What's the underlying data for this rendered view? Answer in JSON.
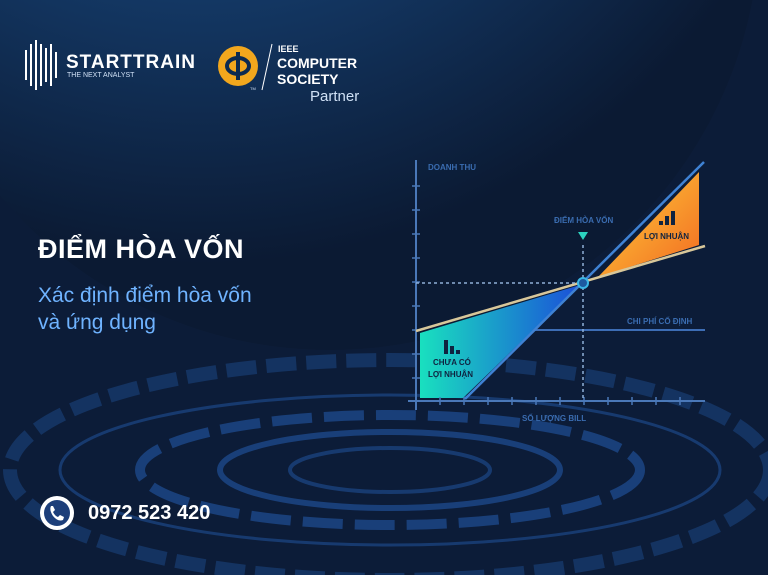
{
  "brand": {
    "name": "STARTTRAIN",
    "tagline": "THE NEXT ANALYST"
  },
  "partner": {
    "line1": "IEEE",
    "line2": "COMPUTER",
    "line3": "SOCIETY",
    "line4": "Partner",
    "tm": "TM"
  },
  "headline": "ĐIỂM HÒA VỐN",
  "subtitle_line1": "Xác định điểm hòa vốn",
  "subtitle_line2": "và ứng dụng",
  "diagram": {
    "y_label": "DOANH THU",
    "x_label": "SỐ LƯỢNG BILL",
    "breakeven_label": "ĐIỂM HÒA VỐN",
    "fixed_cost_label": "CHI PHÍ CỐ ĐỊNH",
    "profit_label": "LỢI NHUẬN",
    "loss_label_line1": "CHƯA CÓ",
    "loss_label_line2": "LỢI NHUẬN"
  },
  "contact": {
    "phone": "0972 523 420",
    "icon": "phone-icon"
  },
  "colors": {
    "background": "#0b1a33",
    "accent_blue": "#4a8fd8",
    "profit": "#f7a928",
    "loss": "#18d0b8",
    "subtitle": "#6fb3ff"
  }
}
